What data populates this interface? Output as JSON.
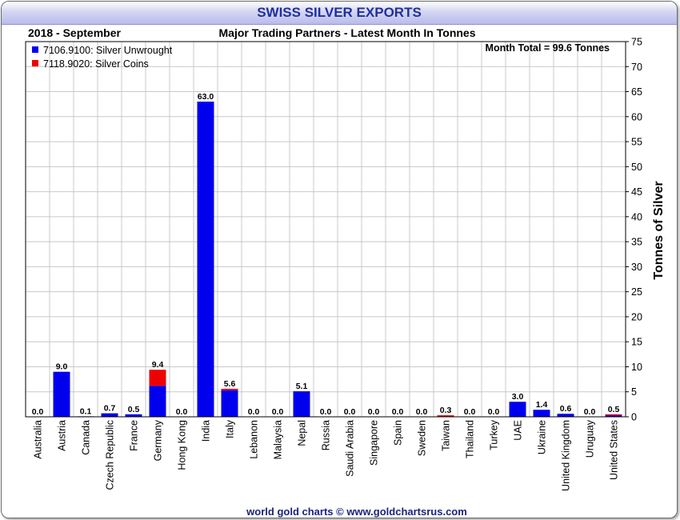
{
  "title": "SWISS SILVER EXPORTS",
  "period": "2018 - September",
  "subtitle": "Major Trading Partners - Latest Month In Tonnes",
  "month_total": "Month Total = 99.6 Tonnes",
  "footer": "world gold charts © www.goldchartsrus.com",
  "colors": {
    "unwrought": "#0000ee",
    "coins": "#ee0000",
    "title": "#1f2fa0",
    "footer": "#1a237e"
  },
  "chart_data": {
    "type": "bar",
    "stacked": true,
    "title": "SWISS SILVER EXPORTS",
    "subtitle": "Major Trading Partners - Latest Month In Tonnes",
    "xlabel": "",
    "ylabel": "Tonnes of Silver",
    "ylim": [
      0,
      75
    ],
    "yticks": [
      0,
      5,
      10,
      15,
      20,
      25,
      30,
      35,
      40,
      45,
      50,
      55,
      60,
      65,
      70,
      75
    ],
    "grid": true,
    "y_axis_position": "right",
    "legend_position": "top-left",
    "categories": [
      "Australia",
      "Austria",
      "Canada",
      "Czech Republic",
      "France",
      "Germany",
      "Hong Kong",
      "India",
      "Italy",
      "Lebanon",
      "Malaysia",
      "Nepal",
      "Russia",
      "Saudi Arabia",
      "Singapore",
      "Spain",
      "Sweden",
      "Taiwan",
      "Thailand",
      "Turkey",
      "UAE",
      "Ukraine",
      "United Kingdom",
      "Uruguay",
      "United States"
    ],
    "series": [
      {
        "name": "7106.9100: Silver Unwrought",
        "color": "#0000ee",
        "values": [
          0.0,
          9.0,
          0.1,
          0.7,
          0.5,
          6.2,
          0.0,
          63.0,
          5.3,
          0.0,
          0.0,
          5.1,
          0.0,
          0.0,
          0.0,
          0.0,
          0.0,
          0.0,
          0.0,
          0.0,
          3.0,
          1.4,
          0.6,
          0.0,
          0.3
        ]
      },
      {
        "name": "7118.9020: Silver Coins",
        "color": "#ee0000",
        "values": [
          0.0,
          0.0,
          0.0,
          0.0,
          0.0,
          3.2,
          0.0,
          0.0,
          0.3,
          0.0,
          0.0,
          0.0,
          0.0,
          0.0,
          0.0,
          0.0,
          0.0,
          0.3,
          0.0,
          0.0,
          0.0,
          0.0,
          0.0,
          0.0,
          0.2
        ]
      }
    ],
    "totals": [
      "0.0",
      "9.0",
      "0.1",
      "0.7",
      "0.5",
      "9.4",
      "0.0",
      "63.0",
      "5.6",
      "0.0",
      "0.0",
      "5.1",
      "0.0",
      "0.0",
      "0.0",
      "0.0",
      "0.0",
      "0.3",
      "0.0",
      "0.0",
      "3.0",
      "1.4",
      "0.6",
      "0.0",
      "0.5"
    ]
  }
}
